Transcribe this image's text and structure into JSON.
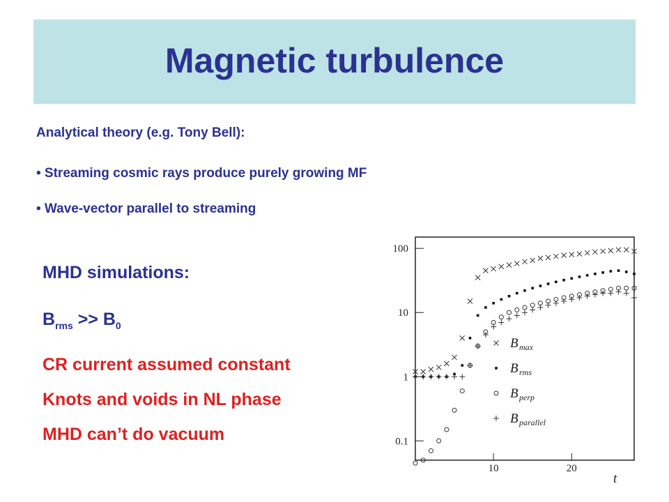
{
  "title": "Magnetic turbulence",
  "intro": "Analytical theory (e.g. Tony Bell):",
  "bullets": [
    "• Streaming cosmic rays produce purely growing MF",
    "• Wave-vector parallel to streaming"
  ],
  "mhd": {
    "heading": "MHD simulations:",
    "brms": {
      "main": "B",
      "sub1": "rms",
      "mid": " >> B",
      "sub2": "0"
    },
    "points": [
      "CR current assumed constant",
      "Knots and voids in NL phase",
      "MHD can’t do vacuum"
    ]
  },
  "chart_data": {
    "type": "scatter",
    "x_axis": {
      "label": "t",
      "ticks": [
        "10",
        "20"
      ],
      "range": [
        0,
        28
      ]
    },
    "y_axis": {
      "scale": "log",
      "ticks": [
        "0.1",
        "1",
        "10",
        "100"
      ],
      "range": [
        0.05,
        150
      ]
    },
    "legend_position": "right",
    "series": [
      {
        "name": "max",
        "marker": "x",
        "points": [
          [
            0,
            1.2
          ],
          [
            1,
            1.2
          ],
          [
            2,
            1.3
          ],
          [
            3,
            1.4
          ],
          [
            4,
            1.6
          ],
          [
            5,
            2
          ],
          [
            6,
            4
          ],
          [
            7,
            15
          ],
          [
            8,
            35
          ],
          [
            9,
            45
          ],
          [
            10,
            48
          ],
          [
            11,
            52
          ],
          [
            12,
            55
          ],
          [
            13,
            58
          ],
          [
            14,
            62
          ],
          [
            15,
            65
          ],
          [
            16,
            70
          ],
          [
            17,
            72
          ],
          [
            18,
            75
          ],
          [
            19,
            78
          ],
          [
            20,
            80
          ],
          [
            21,
            82
          ],
          [
            22,
            85
          ],
          [
            23,
            88
          ],
          [
            24,
            90
          ],
          [
            25,
            92
          ],
          [
            26,
            95
          ],
          [
            27,
            95
          ],
          [
            28,
            90
          ]
        ]
      },
      {
        "name": "rms",
        "marker": "dot",
        "points": [
          [
            0,
            1
          ],
          [
            1,
            1
          ],
          [
            2,
            1
          ],
          [
            3,
            1
          ],
          [
            4,
            1
          ],
          [
            5,
            1.1
          ],
          [
            6,
            1.5
          ],
          [
            7,
            4
          ],
          [
            8,
            9
          ],
          [
            9,
            12
          ],
          [
            10,
            14
          ],
          [
            11,
            16
          ],
          [
            12,
            18
          ],
          [
            13,
            20
          ],
          [
            14,
            22
          ],
          [
            15,
            24
          ],
          [
            16,
            26
          ],
          [
            17,
            28
          ],
          [
            18,
            30
          ],
          [
            19,
            32
          ],
          [
            20,
            34
          ],
          [
            21,
            36
          ],
          [
            22,
            38
          ],
          [
            23,
            40
          ],
          [
            24,
            42
          ],
          [
            25,
            44
          ],
          [
            26,
            45
          ],
          [
            27,
            43
          ],
          [
            28,
            40
          ]
        ]
      },
      {
        "name": "perp",
        "marker": "circle",
        "points": [
          [
            0,
            0.045
          ],
          [
            1,
            0.05
          ],
          [
            2,
            0.07
          ],
          [
            3,
            0.1
          ],
          [
            4,
            0.15
          ],
          [
            5,
            0.3
          ],
          [
            6,
            0.6
          ],
          [
            7,
            1.5
          ],
          [
            8,
            3
          ],
          [
            9,
            5
          ],
          [
            10,
            7
          ],
          [
            11,
            8.5
          ],
          [
            12,
            10
          ],
          [
            13,
            11
          ],
          [
            14,
            12
          ],
          [
            15,
            13
          ],
          [
            16,
            14
          ],
          [
            17,
            15
          ],
          [
            18,
            16
          ],
          [
            19,
            17
          ],
          [
            20,
            18
          ],
          [
            21,
            19
          ],
          [
            22,
            20
          ],
          [
            23,
            21
          ],
          [
            24,
            22
          ],
          [
            25,
            23
          ],
          [
            26,
            24
          ],
          [
            27,
            24
          ],
          [
            28,
            24
          ]
        ]
      },
      {
        "name": "parallel",
        "marker": "plus",
        "points": [
          [
            0,
            1
          ],
          [
            1,
            1
          ],
          [
            2,
            1
          ],
          [
            3,
            1
          ],
          [
            4,
            1
          ],
          [
            5,
            1
          ],
          [
            6,
            1
          ],
          [
            7,
            1.5
          ],
          [
            8,
            3
          ],
          [
            9,
            4.5
          ],
          [
            10,
            6
          ],
          [
            11,
            7
          ],
          [
            12,
            8
          ],
          [
            13,
            9
          ],
          [
            14,
            10
          ],
          [
            15,
            11
          ],
          [
            16,
            12
          ],
          [
            17,
            13
          ],
          [
            18,
            14
          ],
          [
            19,
            15
          ],
          [
            20,
            16
          ],
          [
            21,
            17
          ],
          [
            22,
            18
          ],
          [
            23,
            19
          ],
          [
            24,
            20
          ],
          [
            25,
            20
          ],
          [
            26,
            21
          ],
          [
            27,
            20
          ],
          [
            28,
            17
          ]
        ]
      }
    ],
    "legend": [
      {
        "marker": "×",
        "base": "B",
        "sub": "max"
      },
      {
        "marker": "▪",
        "base": "B",
        "sub": "rms"
      },
      {
        "marker": "○",
        "base": "B",
        "sub": "perp"
      },
      {
        "marker": "+",
        "base": "B",
        "sub": "parallel"
      }
    ]
  }
}
